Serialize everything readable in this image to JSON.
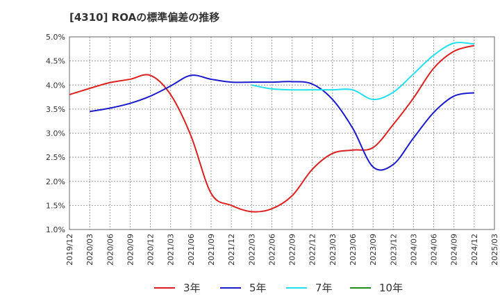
{
  "title": "[4310]  ROAの標準偏差の推移",
  "chart_data": {
    "type": "line",
    "title": "[4310]  ROAの標準偏差の推移",
    "ylim": [
      1.0,
      5.0
    ],
    "yticks": [
      1.0,
      1.5,
      2.0,
      2.5,
      3.0,
      3.5,
      4.0,
      4.5,
      5.0
    ],
    "ytick_labels": [
      "1.0%",
      "1.5%",
      "2.0%",
      "2.5%",
      "3.0%",
      "3.5%",
      "4.0%",
      "4.5%",
      "5.0%"
    ],
    "xtick_labels": [
      "2019/12",
      "2020/03",
      "2020/06",
      "2020/09",
      "2020/12",
      "2021/03",
      "2021/06",
      "2021/09",
      "2021/12",
      "2022/03",
      "2022/06",
      "2022/09",
      "2022/12",
      "2023/03",
      "2023/06",
      "2023/09",
      "2023/12",
      "2024/03",
      "2024/06",
      "2024/09",
      "2024/12",
      "2025/03"
    ],
    "grid": true,
    "legend_position": "bottom",
    "series": [
      {
        "name": "3年",
        "color": "#dd1f1f",
        "x": [
          "2019/12",
          "2020/03",
          "2020/06",
          "2020/09",
          "2020/12",
          "2021/03",
          "2021/06",
          "2021/09",
          "2021/12",
          "2022/03",
          "2022/06",
          "2022/09",
          "2022/12",
          "2023/03",
          "2023/06",
          "2023/09",
          "2023/12",
          "2024/03",
          "2024/06",
          "2024/09",
          "2024/12"
        ],
        "values": [
          3.8,
          3.93,
          4.05,
          4.12,
          4.2,
          3.8,
          2.95,
          1.75,
          1.5,
          1.37,
          1.43,
          1.7,
          2.25,
          2.58,
          2.65,
          2.7,
          3.18,
          3.73,
          4.35,
          4.7,
          4.82
        ]
      },
      {
        "name": "5年",
        "color": "#1a1acc",
        "x": [
          "2020/03",
          "2020/06",
          "2020/09",
          "2020/12",
          "2021/03",
          "2021/06",
          "2021/09",
          "2021/12",
          "2022/03",
          "2022/06",
          "2022/09",
          "2022/12",
          "2023/03",
          "2023/06",
          "2023/09",
          "2023/12",
          "2024/03",
          "2024/06",
          "2024/09",
          "2024/12"
        ],
        "values": [
          3.45,
          3.52,
          3.62,
          3.77,
          3.98,
          4.2,
          4.12,
          4.06,
          4.06,
          4.06,
          4.07,
          4.02,
          3.7,
          3.1,
          2.3,
          2.35,
          2.9,
          3.43,
          3.77,
          3.84
        ]
      },
      {
        "name": "7年",
        "color": "#22e0ef",
        "x": [
          "2022/03",
          "2022/06",
          "2022/09",
          "2022/12",
          "2023/03",
          "2023/06",
          "2023/09",
          "2023/12",
          "2024/03",
          "2024/06",
          "2024/09",
          "2024/12"
        ],
        "values": [
          4.0,
          3.92,
          3.9,
          3.9,
          3.9,
          3.9,
          3.7,
          3.85,
          4.23,
          4.62,
          4.87,
          4.85
        ]
      },
      {
        "name": "10年",
        "color": "#1f8a1f",
        "x": [],
        "values": []
      }
    ]
  }
}
